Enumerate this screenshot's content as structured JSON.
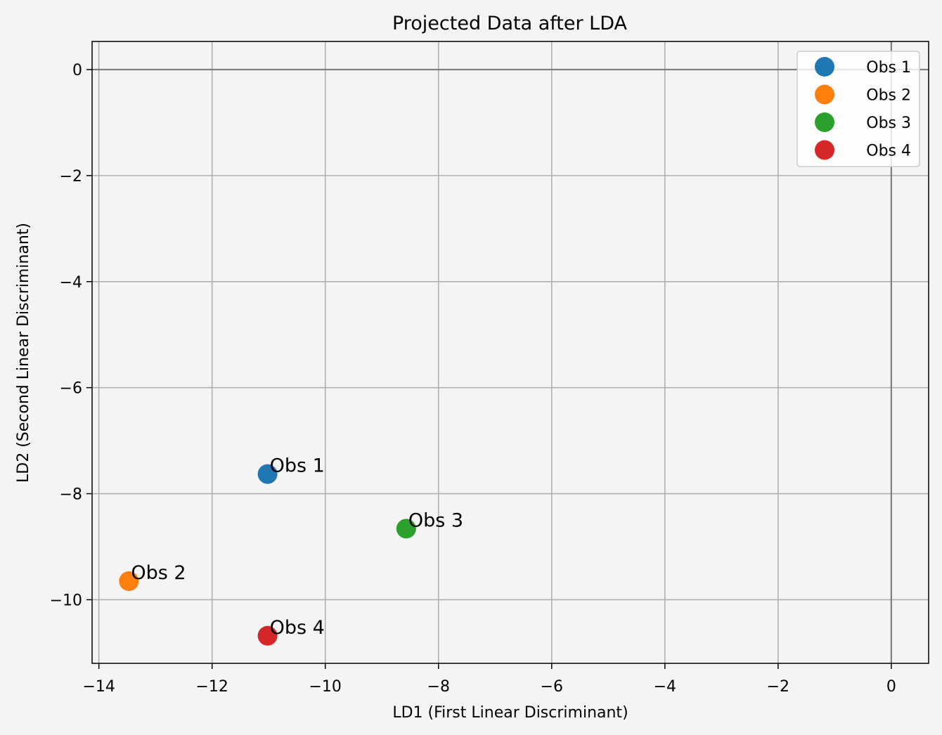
{
  "chart_data": {
    "type": "scatter",
    "title": "Projected Data after LDA",
    "xlabel": "LD1 (First Linear Discriminant)",
    "ylabel": "LD2 (Second Linear Discriminant)",
    "xlim": [
      -14.12,
      0.66
    ],
    "ylim": [
      -11.2,
      0.53
    ],
    "xticks": [
      -14,
      -12,
      -10,
      -8,
      -6,
      -4,
      -2,
      0
    ],
    "yticks": [
      0,
      -2,
      -4,
      -6,
      -8,
      -10
    ],
    "xtick_labels": [
      "−14",
      "−12",
      "−10",
      "−8",
      "−6",
      "−4",
      "−2",
      "0"
    ],
    "ytick_labels": [
      "0",
      "−2",
      "−4",
      "−6",
      "−8",
      "−10"
    ],
    "grid": true,
    "reference_lines": {
      "x": 0,
      "y": 0
    },
    "legend_position": "top-right",
    "series": [
      {
        "name": "Obs 1",
        "x": -11.02,
        "y": -7.63,
        "color": "#1f77b4",
        "label": "Obs 1"
      },
      {
        "name": "Obs 2",
        "x": -13.47,
        "y": -9.65,
        "color": "#ff7f0e",
        "label": "Obs 2"
      },
      {
        "name": "Obs 3",
        "x": -8.57,
        "y": -8.66,
        "color": "#2ca02c",
        "label": "Obs 3"
      },
      {
        "name": "Obs 4",
        "x": -11.02,
        "y": -10.68,
        "color": "#d62728",
        "label": "Obs 4"
      }
    ]
  },
  "colors": {
    "background": "#f4f4f4",
    "grid": "#b0b0b0",
    "reference_line": "#808080",
    "axes": "#000000"
  }
}
